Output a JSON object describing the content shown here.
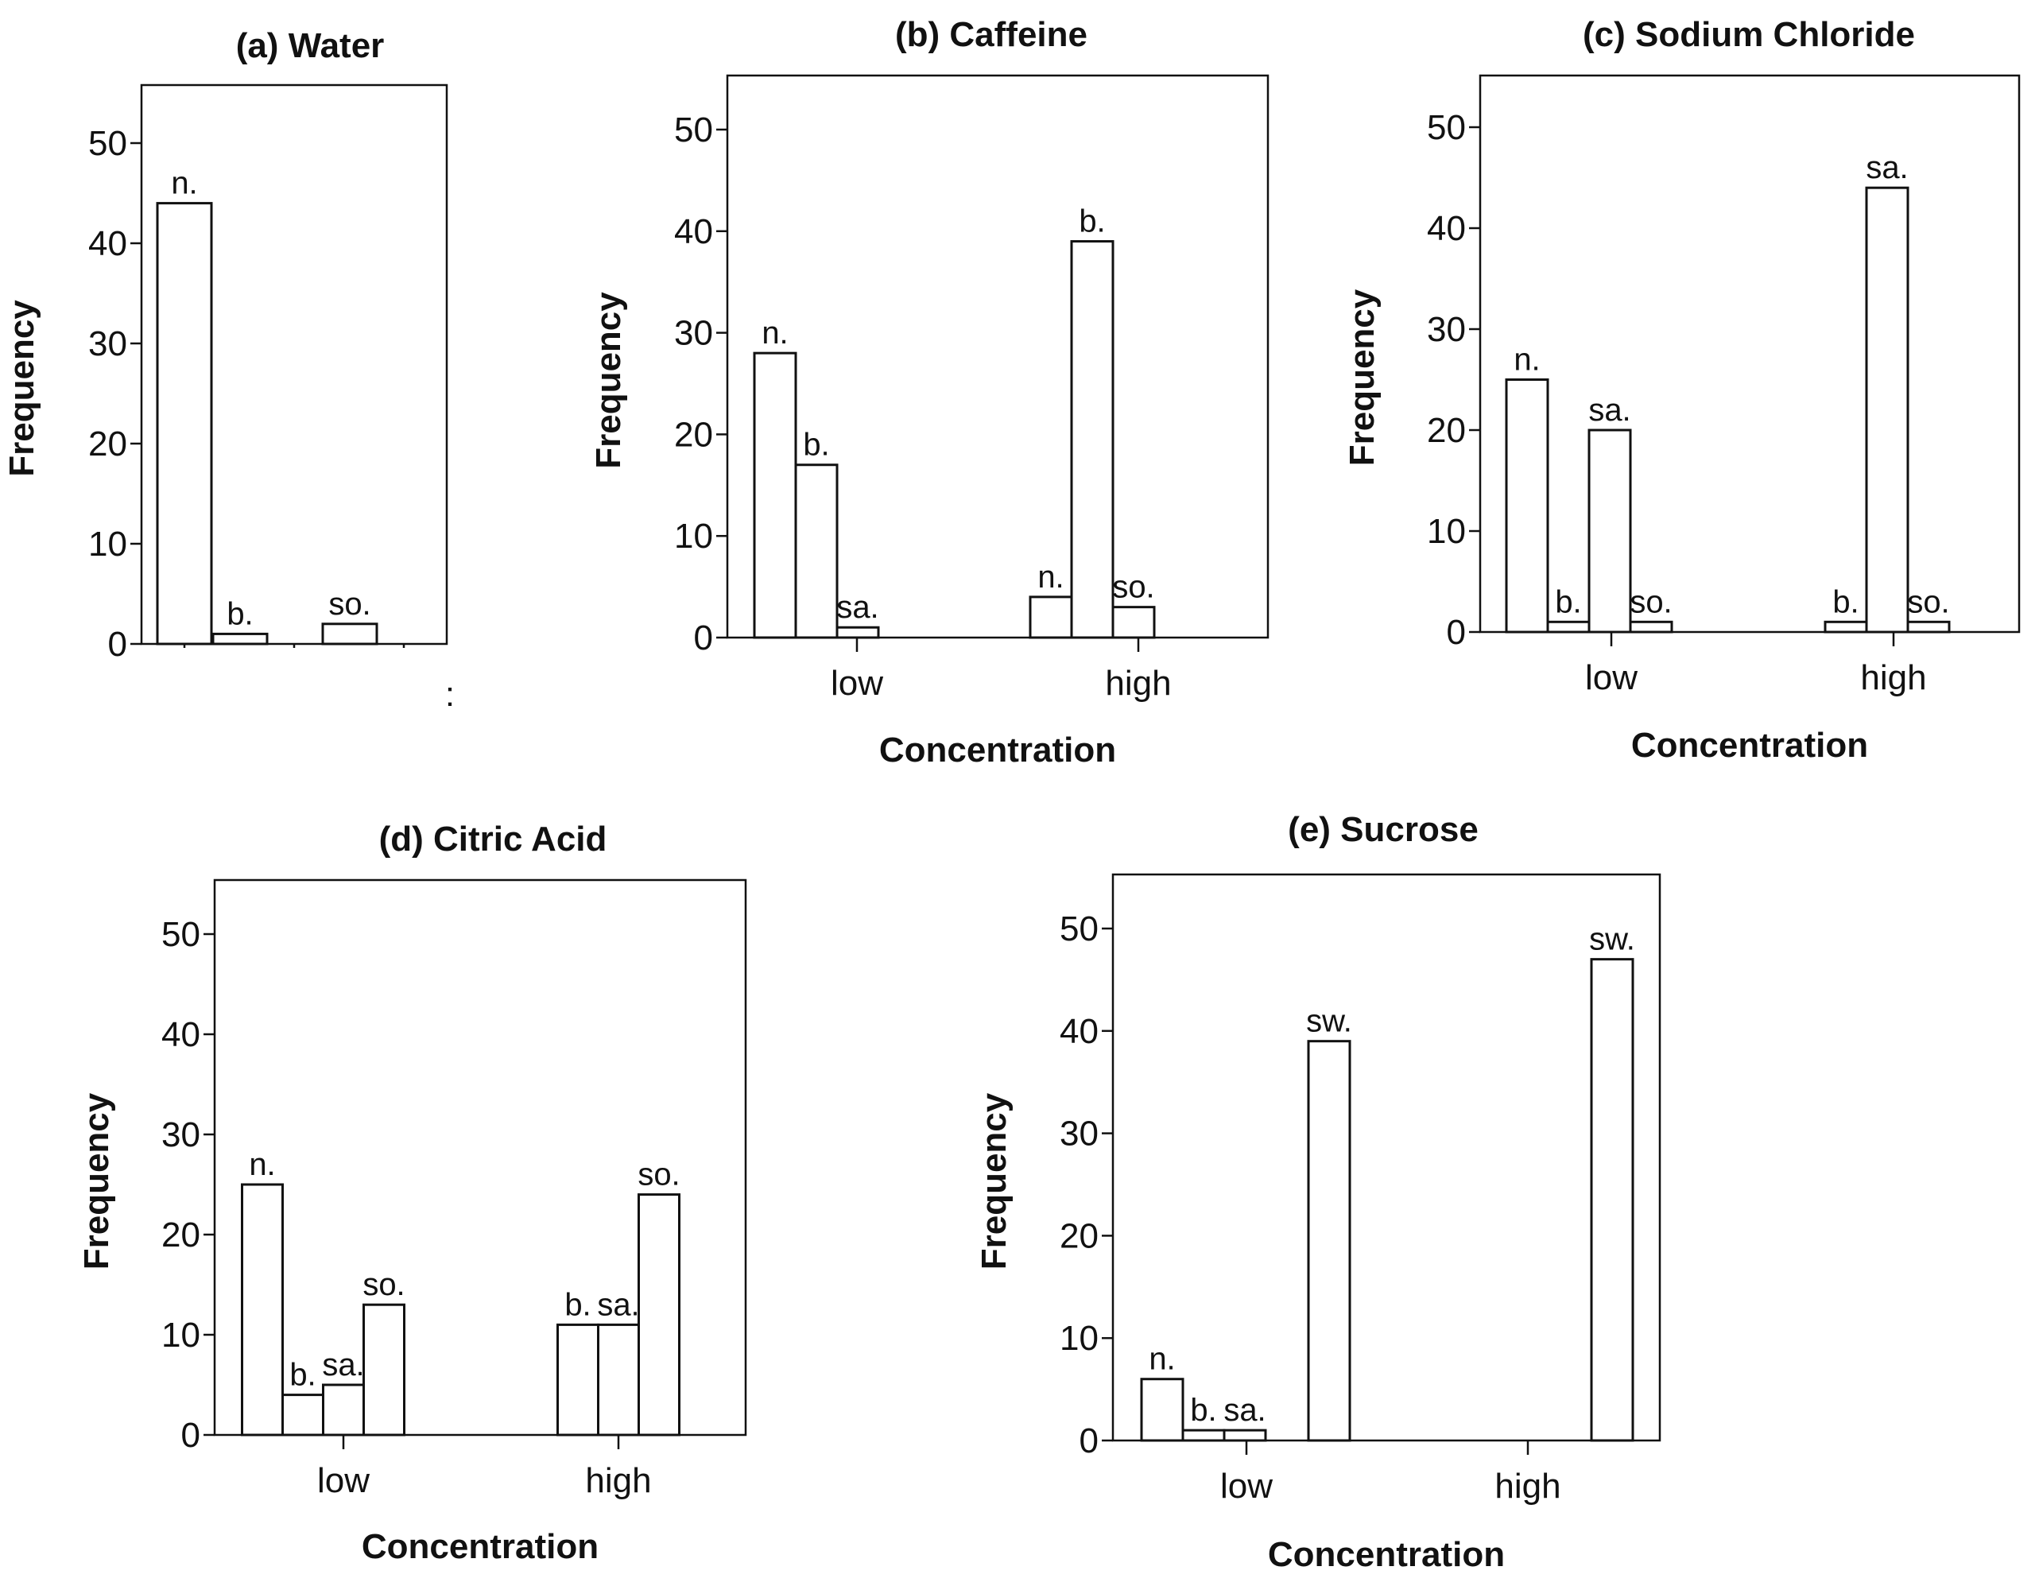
{
  "figure": {
    "background": "#ffffff",
    "ink": "#111111"
  },
  "chart_data": [
    {
      "id": "a",
      "type": "bar",
      "title": "(a) Water",
      "ylabel": "Frequency",
      "xlabel": "",
      "ylim": [
        0,
        55
      ],
      "yticks": [
        0,
        10,
        20,
        30,
        40,
        50
      ],
      "categories": [],
      "bars": [
        {
          "label": "n.",
          "value": 44
        },
        {
          "label": "b.",
          "value": 1
        },
        {
          "label": "",
          "value": 0
        },
        {
          "label": "so.",
          "value": 2
        },
        {
          "label": "",
          "value": 0
        }
      ],
      "stray_mark": ":"
    },
    {
      "id": "b",
      "type": "bar",
      "title": "(b) Caffeine",
      "ylabel": "Frequency",
      "xlabel": "Concentration",
      "ylim": [
        0,
        55
      ],
      "yticks": [
        0,
        10,
        20,
        30,
        40,
        50
      ],
      "categories": [
        "low",
        "high"
      ],
      "bars": [
        {
          "category": "low",
          "label": "n.",
          "value": 28
        },
        {
          "category": "low",
          "label": "b.",
          "value": 17
        },
        {
          "category": "low",
          "label": "sa.",
          "value": 1
        },
        {
          "category": "high",
          "label": "n.",
          "value": 4
        },
        {
          "category": "high",
          "label": "b.",
          "value": 39
        },
        {
          "category": "high",
          "label": "so.",
          "value": 3
        }
      ]
    },
    {
      "id": "c",
      "type": "bar",
      "title": "(c) Sodium Chloride",
      "ylabel": "Frequency",
      "xlabel": "Concentration",
      "ylim": [
        0,
        55
      ],
      "yticks": [
        0,
        10,
        20,
        30,
        40,
        50
      ],
      "categories": [
        "low",
        "high"
      ],
      "bars": [
        {
          "category": "low",
          "label": "n.",
          "value": 25
        },
        {
          "category": "low",
          "label": "b.",
          "value": 1
        },
        {
          "category": "low",
          "label": "sa.",
          "value": 20
        },
        {
          "category": "low",
          "label": "so.",
          "value": 1
        },
        {
          "category": "high",
          "label": "b.",
          "value": 1
        },
        {
          "category": "high",
          "label": "sa.",
          "value": 44
        },
        {
          "category": "high",
          "label": "so.",
          "value": 1
        }
      ]
    },
    {
      "id": "d",
      "type": "bar",
      "title": "(d) Citric Acid",
      "ylabel": "Frequency",
      "xlabel": "Concentration",
      "ylim": [
        0,
        55
      ],
      "yticks": [
        0,
        10,
        20,
        30,
        40,
        50
      ],
      "categories": [
        "low",
        "high"
      ],
      "bars": [
        {
          "category": "low",
          "label": "n.",
          "value": 25
        },
        {
          "category": "low",
          "label": "b.",
          "value": 4
        },
        {
          "category": "low",
          "label": "sa.",
          "value": 5
        },
        {
          "category": "low",
          "label": "so.",
          "value": 13
        },
        {
          "category": "high",
          "label": "b.",
          "value": 11
        },
        {
          "category": "high",
          "label": "sa.",
          "value": 11
        },
        {
          "category": "high",
          "label": "so.",
          "value": 24
        }
      ]
    },
    {
      "id": "e",
      "type": "bar",
      "title": "(e) Sucrose",
      "ylabel": "Frequency",
      "xlabel": "Concentration",
      "ylim": [
        0,
        55
      ],
      "yticks": [
        0,
        10,
        20,
        30,
        40,
        50
      ],
      "categories": [
        "low",
        "high"
      ],
      "bars": [
        {
          "category": "low",
          "label": "n.",
          "value": 6
        },
        {
          "category": "low",
          "label": "b.",
          "value": 1
        },
        {
          "category": "low",
          "label": "sa.",
          "value": 1
        },
        {
          "category": "low",
          "label": "sw.",
          "value": 39
        },
        {
          "category": "high",
          "label": "sw.",
          "value": 47
        }
      ]
    }
  ]
}
